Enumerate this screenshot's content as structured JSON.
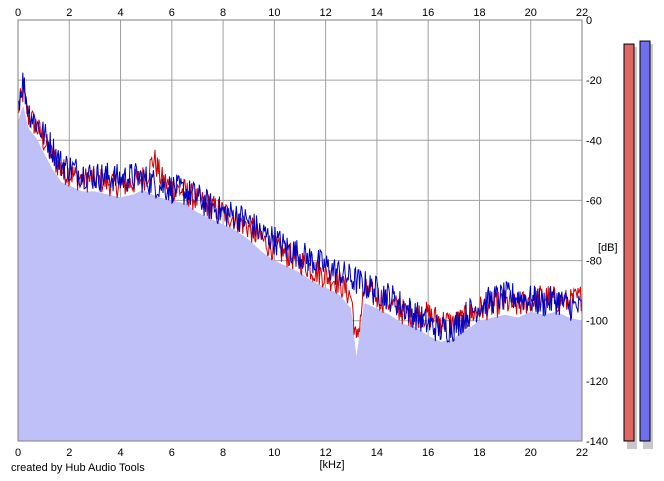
{
  "credit": "created by Hub Audio Tools",
  "chart_data": {
    "type": "line",
    "title": "",
    "xlabel": "[kHz]",
    "ylabel": "[dB]",
    "xlim": [
      0,
      22
    ],
    "ylim": [
      -140,
      0
    ],
    "x_ticks": [
      "0",
      "2",
      "4",
      "6",
      "8",
      "10",
      "12",
      "14",
      "16",
      "18",
      "20",
      "22"
    ],
    "y_ticks": [
      "0",
      "-20",
      "-40",
      "-60",
      "-80",
      "-100",
      "-120",
      "-140"
    ],
    "grid": true,
    "x_axis_position": "top and bottom",
    "y_axis_position": "right",
    "series": [
      {
        "color": "#d40000",
        "fill": "#c0c0f8",
        "x": [
          0,
          0.2,
          0.4,
          0.7,
          1,
          1.3,
          1.7,
          2,
          2.5,
          3,
          3.5,
          4,
          4.5,
          5,
          5.3,
          5.6,
          6,
          6.5,
          7,
          7.5,
          8,
          8.5,
          9,
          9.5,
          10,
          10.5,
          11,
          11.5,
          12,
          12.5,
          13,
          13.2,
          13.5,
          14,
          14.5,
          15,
          15.5,
          16,
          16.5,
          17,
          17.5,
          18,
          18.5,
          19,
          19.5,
          20,
          20.5,
          21,
          21.5,
          22
        ],
        "y": [
          -30,
          -24,
          -32,
          -35,
          -40,
          -45,
          -50,
          -51,
          -53,
          -53,
          -54,
          -55,
          -54,
          -52,
          -46,
          -53,
          -56,
          -57,
          -60,
          -62,
          -64,
          -66,
          -69,
          -73,
          -76,
          -78,
          -80,
          -83,
          -85,
          -87,
          -92,
          -108,
          -90,
          -92,
          -94,
          -97,
          -98,
          -98,
          -100,
          -101,
          -99,
          -96,
          -95,
          -94,
          -95,
          -93,
          -92,
          -93,
          -94,
          -92
        ]
      },
      {
        "color": "#0000c0",
        "x": [
          0,
          0.2,
          0.4,
          0.7,
          1,
          1.3,
          1.7,
          2,
          2.5,
          3,
          3.5,
          4,
          4.5,
          5,
          5.5,
          6,
          6.5,
          7,
          7.5,
          8,
          8.5,
          9,
          9.5,
          10,
          10.5,
          11,
          11.5,
          12,
          12.5,
          13,
          13.5,
          14,
          14.5,
          15,
          15.5,
          16,
          16.5,
          17,
          17.5,
          18,
          18.5,
          19,
          19.5,
          20,
          20.5,
          21,
          21.5,
          22
        ],
        "y": [
          -28,
          -20,
          -30,
          -34,
          -38,
          -42,
          -48,
          -49,
          -51,
          -52,
          -52,
          -53,
          -52,
          -53,
          -55,
          -56,
          -57,
          -59,
          -62,
          -64,
          -65,
          -67,
          -71,
          -73,
          -76,
          -78,
          -80,
          -82,
          -84,
          -86,
          -88,
          -90,
          -92,
          -95,
          -98,
          -101,
          -103,
          -102,
          -98,
          -95,
          -93,
          -92,
          -92,
          -93,
          -94,
          -93,
          -95,
          -96
        ]
      }
    ],
    "level_meters": [
      {
        "color": "#e06666",
        "value_db": -8
      },
      {
        "color": "#7070ee",
        "value_db": -7
      }
    ]
  }
}
